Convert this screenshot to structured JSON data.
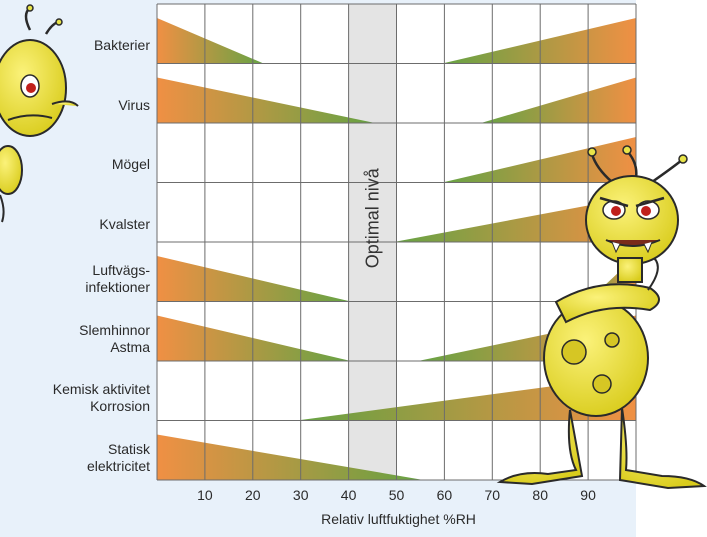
{
  "chart_data": {
    "type": "area",
    "title": "",
    "xlabel": "Relativ luftfuktighet %RH",
    "ylabel": "",
    "xlim": [
      0,
      100
    ],
    "x_ticks": [
      10,
      20,
      30,
      40,
      50,
      60,
      70,
      80,
      90
    ],
    "optimal_band": {
      "label": "Optimal nivå",
      "from": 40,
      "to": 50
    },
    "grid": true,
    "colors": {
      "high": "#ef8a3a",
      "low": "#5f9e3a",
      "band": "#e4e4e4",
      "grid": "#6c6c6c"
    },
    "rows": [
      {
        "label": "Bakterier",
        "segments": [
          {
            "from": 0,
            "to": 22
          },
          {
            "from": 60,
            "to": 100
          }
        ]
      },
      {
        "label": "Virus",
        "segments": [
          {
            "from": 0,
            "to": 45
          },
          {
            "from": 68,
            "to": 100
          }
        ]
      },
      {
        "label": "Mögel",
        "segments": [
          {
            "from": 60,
            "to": 100
          }
        ]
      },
      {
        "label": "Kvalster",
        "segments": [
          {
            "from": 50,
            "to": 100
          }
        ]
      },
      {
        "label": "Luftvägs-\ninfektioner",
        "segments": [
          {
            "from": 0,
            "to": 40
          },
          {
            "from": 90,
            "to": 100
          }
        ]
      },
      {
        "label": "Slemhinnor\nAstma",
        "segments": [
          {
            "from": 0,
            "to": 40
          },
          {
            "from": 55,
            "to": 100
          }
        ]
      },
      {
        "label": "Kemisk aktivitet\nKorrosion",
        "segments": [
          {
            "from": 30,
            "to": 100
          }
        ]
      },
      {
        "label": "Statisk\nelektricitet",
        "segments": [
          {
            "from": 0,
            "to": 55
          }
        ]
      }
    ]
  }
}
